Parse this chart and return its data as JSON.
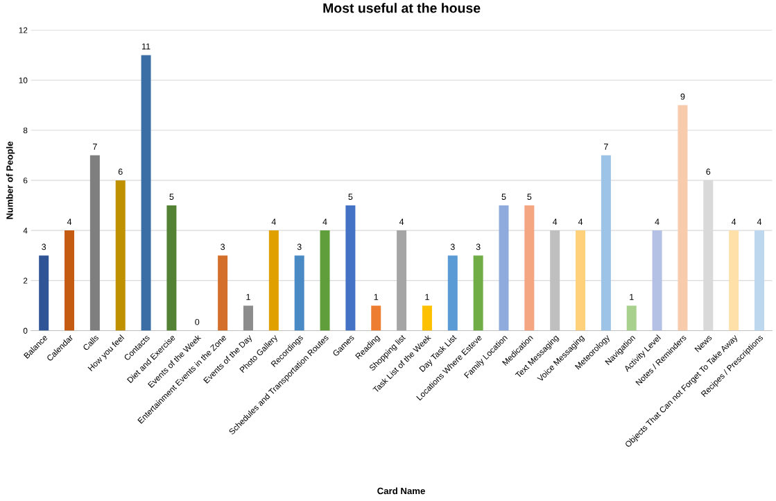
{
  "chart_data": {
    "type": "bar",
    "title": "Most useful at the house",
    "xlabel": "Card Name",
    "ylabel": "Number of People",
    "categories": [
      "Balance",
      "Calendar",
      "Calls",
      "How you feel",
      "Contacts",
      "Diet and Exercise",
      "Events of the Week",
      "Entertainment Events in the Zone",
      "Events of the Day",
      "Photo Gallery",
      "Recordings",
      "Schedules and Transportation Routes",
      "Games",
      "Reading",
      "Shopping list",
      "Task List of the Week",
      "Day Task List",
      "Locations Where Esteve",
      "Family Location",
      "Medication",
      "Text Messaging",
      "Voice Messaging",
      "Meteorology",
      "Navigation",
      "Activity Level",
      "Notes / Reminders",
      "News",
      "Objects That Can not Forget To Take Away",
      "Recipes / Prescriptions"
    ],
    "values": [
      3,
      4,
      7,
      6,
      11,
      5,
      0,
      3,
      1,
      4,
      3,
      4,
      5,
      1,
      4,
      1,
      3,
      3,
      5,
      5,
      4,
      4,
      7,
      1,
      4,
      9,
      6,
      4,
      4
    ],
    "colors": [
      "#2f5597",
      "#c55a11",
      "#7f7f7f",
      "#bf9000",
      "#3a6ea5",
      "#548235",
      "#3d6bc0",
      "#d36f2a",
      "#8c8c8c",
      "#e0a000",
      "#4a8ac4",
      "#5f9e3a",
      "#4472c4",
      "#ed7d31",
      "#a5a5a5",
      "#ffc000",
      "#5b9bd5",
      "#70ad47",
      "#8faadc",
      "#f4a582",
      "#bfbfbf",
      "#ffd17a",
      "#9dc3e6",
      "#a9d18e",
      "#b4c0e4",
      "#f8cbad",
      "#d9d9d9",
      "#ffe0a8",
      "#bdd7ee"
    ],
    "ylim": [
      0,
      12
    ],
    "yticks": [
      0,
      2,
      4,
      6,
      8,
      10,
      12
    ],
    "grid": "y",
    "data_labels": true
  }
}
